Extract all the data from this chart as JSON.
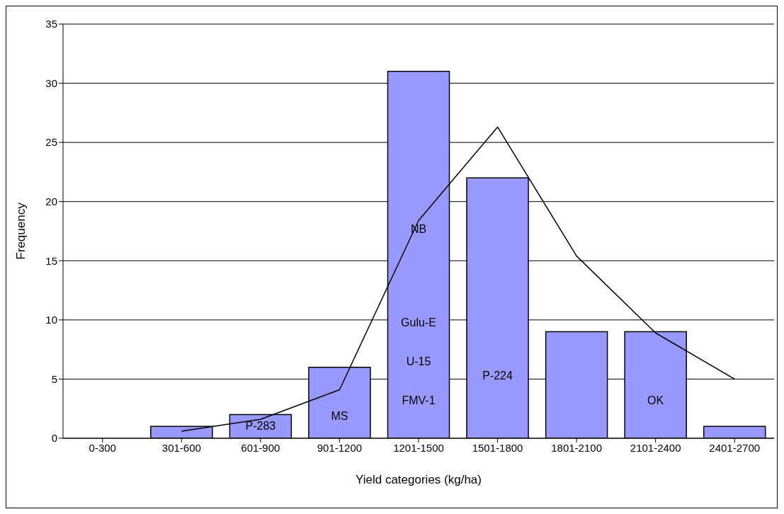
{
  "chart_data": {
    "type": "bar",
    "xlabel": "Yield categories (kg/ha)",
    "ylabel": "Frequency",
    "categories": [
      "0-300",
      "301-600",
      "601-900",
      "901-1200",
      "1201-1500",
      "1501-1800",
      "1801-2100",
      "2101-2400",
      "2401-2700"
    ],
    "series": [
      {
        "color": "#9999ff",
        "values": [
          0,
          1,
          2,
          6,
          31,
          22,
          9,
          9,
          1
        ]
      },
      {
        "type": "line",
        "color": "#000000",
        "values": [
          null,
          0.6,
          1.6,
          4.1,
          18.4,
          26.3,
          15.4,
          8.9,
          5.0
        ]
      }
    ],
    "ylim": [
      0,
      35
    ],
    "yticks": [
      0,
      5,
      10,
      15,
      20,
      25,
      30,
      35
    ],
    "grid": "y",
    "legend": false,
    "marker": "none",
    "line_style": "solid",
    "annotations": [
      "NB",
      "Gulu-E",
      "U-15",
      "FMV-1",
      "P-224",
      "P-283",
      "MS",
      "OK"
    ]
  }
}
